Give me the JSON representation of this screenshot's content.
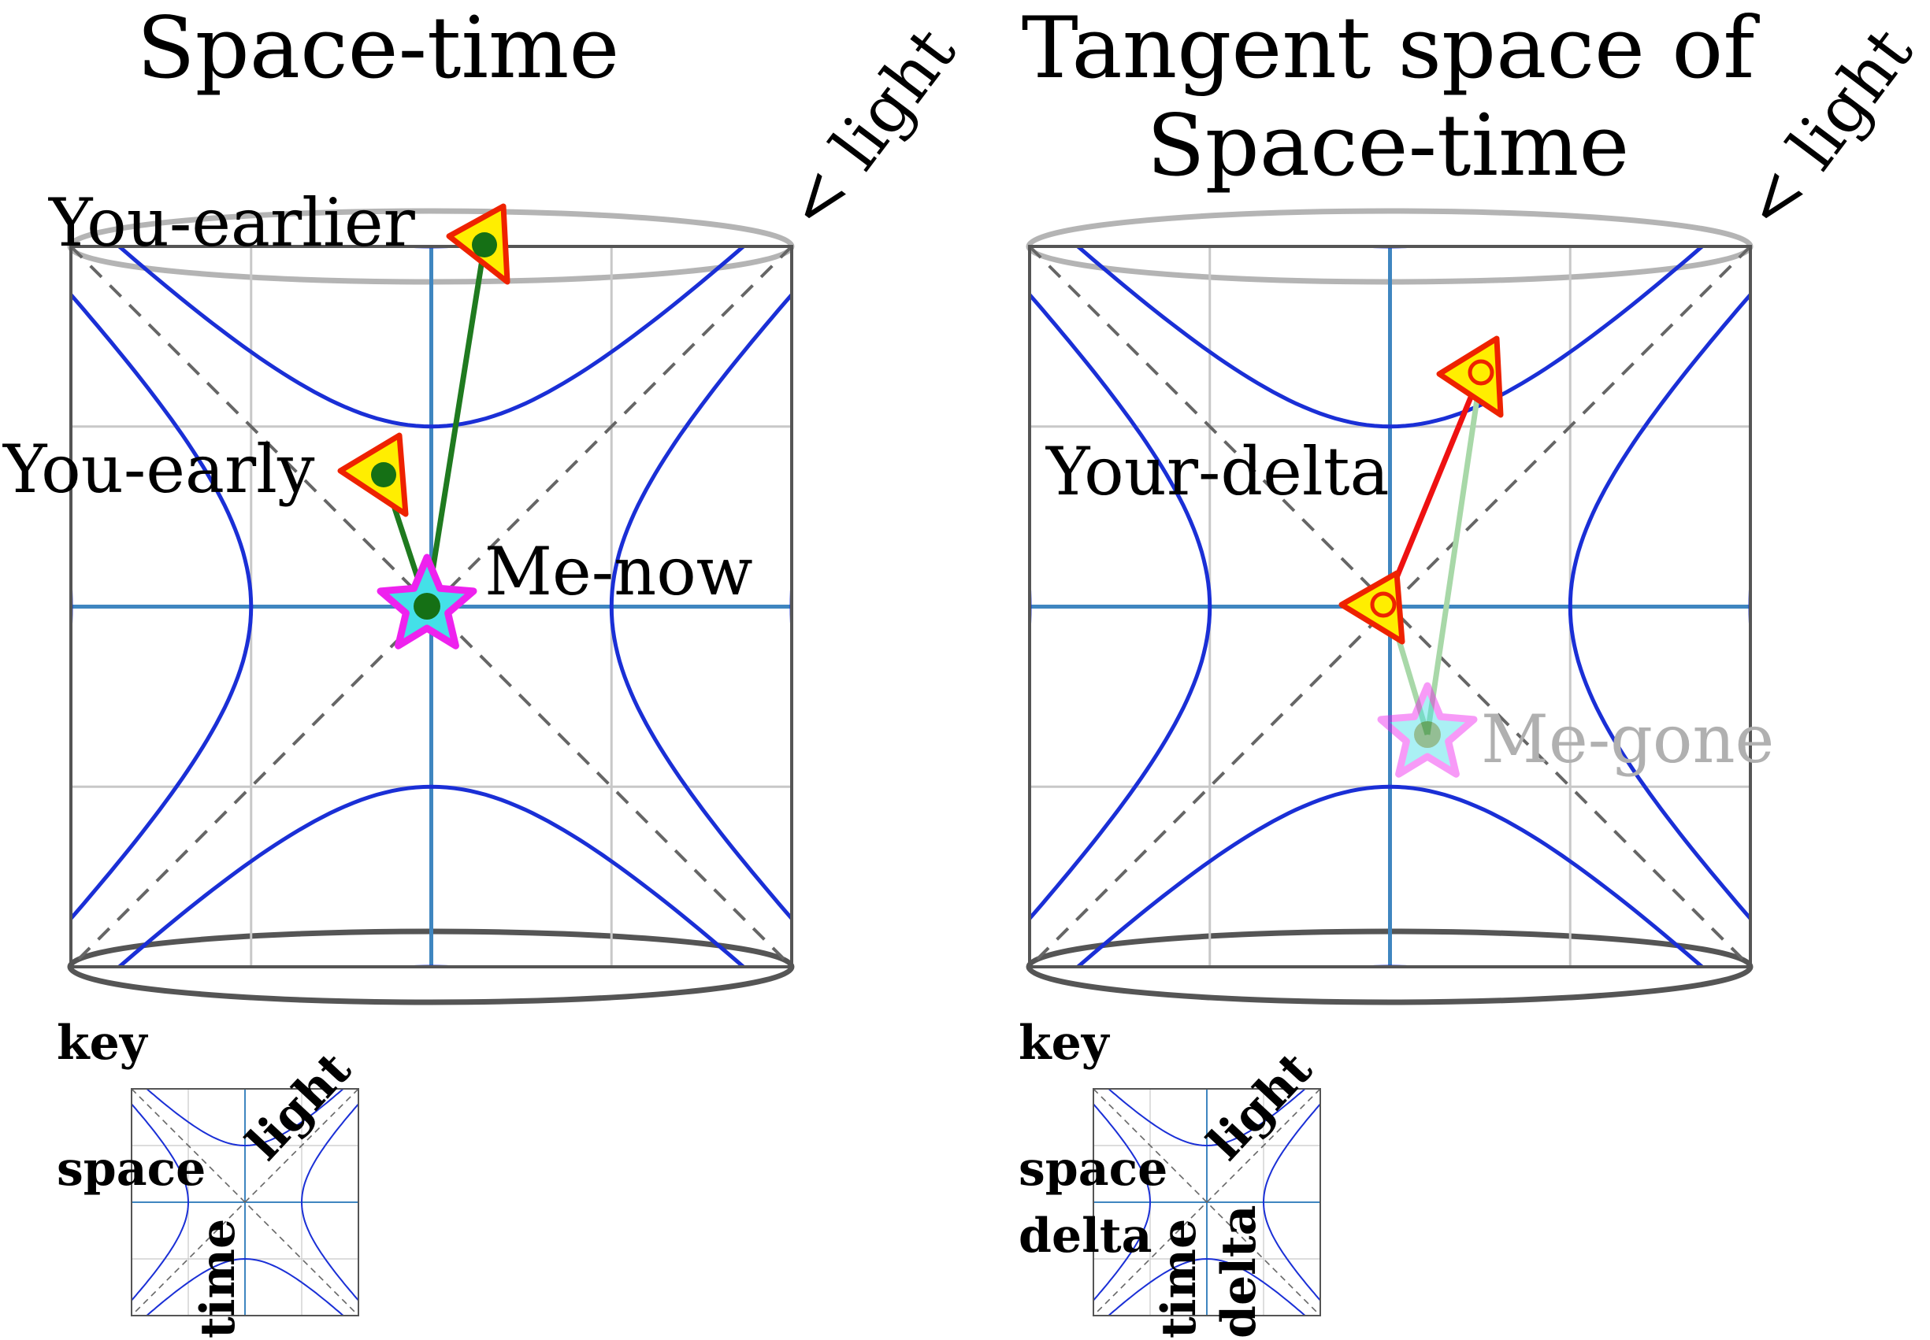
{
  "left_panel": {
    "title": "Space-time",
    "light_label": "< light",
    "labels": {
      "you_earlier": "You-earlier",
      "you_early": "You-early",
      "me_now": "Me-now"
    },
    "key": {
      "heading": "key",
      "space": "space",
      "time": "time",
      "light": "light"
    }
  },
  "right_panel": {
    "title_line1": "Tangent space of",
    "title_line2": "Space-time",
    "light_label": "< light",
    "labels": {
      "your_delta": "Your-delta",
      "me_gone": "Me-gone"
    },
    "key": {
      "heading": "key",
      "space": "space",
      "space_delta": "delta",
      "time": "time",
      "time_delta": "delta",
      "light": "light"
    }
  },
  "colors": {
    "hyperbola": "#1a2fd6",
    "axis": "#3f86c0",
    "grid": "#c8c8c8",
    "frame": "#555555",
    "light_cone": "#666666",
    "worldline": "#1f7a1f",
    "delta_line": "#ee1111",
    "marker_fill": "#ffee00",
    "marker_stroke": "#ee2200",
    "star_stroke": "#ee22ee",
    "star_fill": "#44e0e8",
    "dot": "#157015"
  }
}
